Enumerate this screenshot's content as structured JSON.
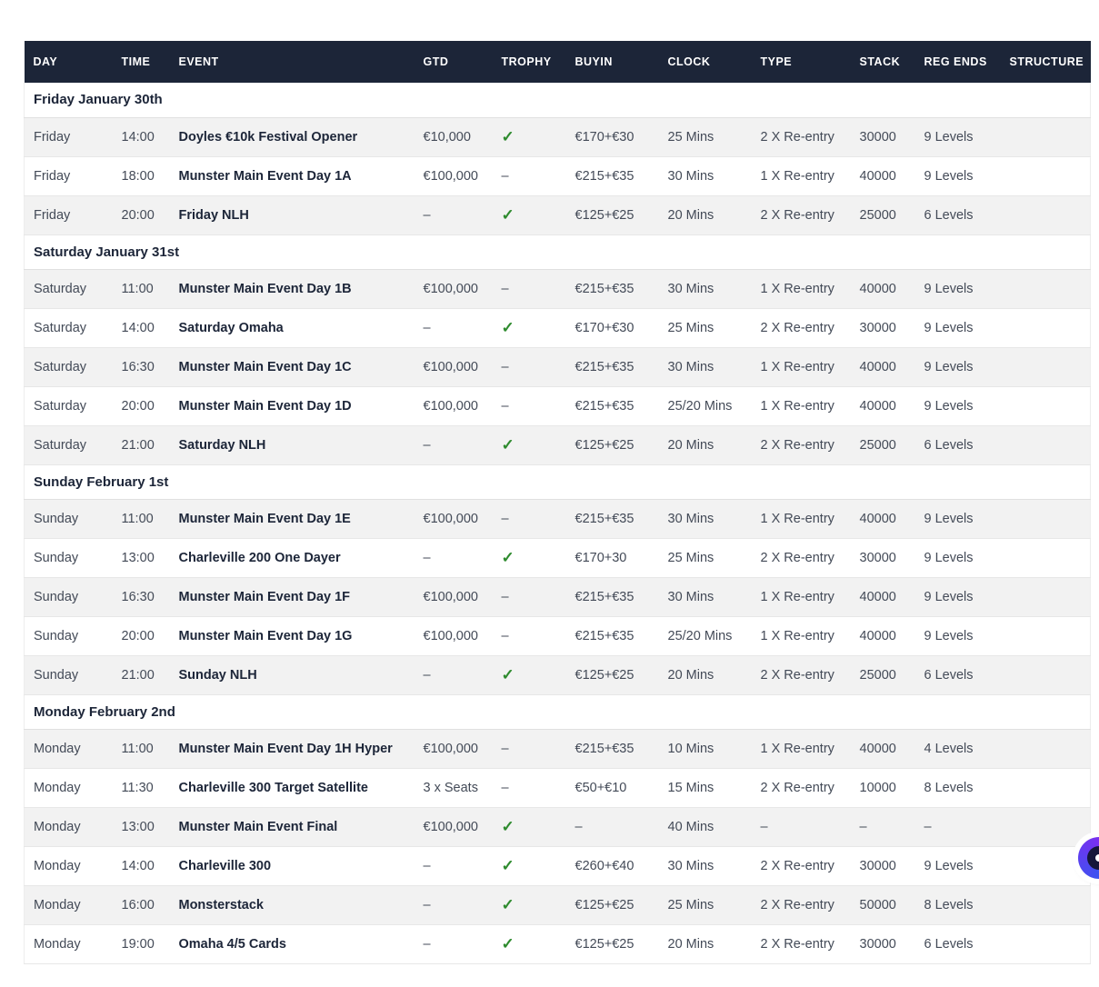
{
  "colors": {
    "header_bg": "#1c2538",
    "row_stripe": "#f2f2f2",
    "check_green": "#2e8b2e",
    "navy_text": "#1c2538",
    "widget_purple": "#7a2ff0",
    "widget_blue": "#2f5af0"
  },
  "table": {
    "columns": [
      {
        "key": "day",
        "label": "DAY"
      },
      {
        "key": "time",
        "label": "TIME"
      },
      {
        "key": "event",
        "label": "EVENT"
      },
      {
        "key": "gtd",
        "label": "GTD"
      },
      {
        "key": "trophy",
        "label": "TROPHY"
      },
      {
        "key": "buyin",
        "label": "BUYIN"
      },
      {
        "key": "clock",
        "label": "CLOCK"
      },
      {
        "key": "type",
        "label": "TYPE"
      },
      {
        "key": "stack",
        "label": "STACK"
      },
      {
        "key": "reg_ends",
        "label": "REG ENDS"
      },
      {
        "key": "structure",
        "label": "STRUCTURE"
      }
    ],
    "trophy_check_glyph": "✓",
    "empty_glyph": "–",
    "sections": [
      {
        "title": "Friday January 30th",
        "rows": [
          {
            "day": "Friday",
            "time": "14:00",
            "event": "Doyles €10k Festival Opener",
            "gtd": "€10,000",
            "trophy": true,
            "buyin": "€170+€30",
            "clock": "25 Mins",
            "type": "2 X Re-entry",
            "stack": "30000",
            "reg_ends": "9 Levels",
            "structure": ""
          },
          {
            "day": "Friday",
            "time": "18:00",
            "event": "Munster Main Event Day 1A",
            "gtd": "€100,000",
            "trophy": false,
            "buyin": "€215+€35",
            "clock": "30 Mins",
            "type": "1 X Re-entry",
            "stack": "40000",
            "reg_ends": "9 Levels",
            "structure": ""
          },
          {
            "day": "Friday",
            "time": "20:00",
            "event": "Friday NLH",
            "gtd": "–",
            "trophy": true,
            "buyin": "€125+€25",
            "clock": "20 Mins",
            "type": "2 X Re-entry",
            "stack": "25000",
            "reg_ends": "6 Levels",
            "structure": ""
          }
        ]
      },
      {
        "title": "Saturday January 31st",
        "rows": [
          {
            "day": "Saturday",
            "time": "11:00",
            "event": "Munster Main Event Day 1B",
            "gtd": "€100,000",
            "trophy": false,
            "buyin": "€215+€35",
            "clock": "30 Mins",
            "type": "1 X Re-entry",
            "stack": "40000",
            "reg_ends": "9 Levels",
            "structure": ""
          },
          {
            "day": "Saturday",
            "time": "14:00",
            "event": "Saturday Omaha",
            "gtd": "–",
            "trophy": true,
            "buyin": "€170+€30",
            "clock": "25 Mins",
            "type": "2 X Re-entry",
            "stack": "30000",
            "reg_ends": "9 Levels",
            "structure": ""
          },
          {
            "day": "Saturday",
            "time": "16:30",
            "event": "Munster Main Event Day 1C",
            "gtd": "€100,000",
            "trophy": false,
            "buyin": "€215+€35",
            "clock": "30 Mins",
            "type": "1 X Re-entry",
            "stack": "40000",
            "reg_ends": "9 Levels",
            "structure": ""
          },
          {
            "day": "Saturday",
            "time": "20:00",
            "event": "Munster Main Event Day 1D",
            "gtd": "€100,000",
            "trophy": false,
            "buyin": "€215+€35",
            "clock": "25/20 Mins",
            "type": "1 X Re-entry",
            "stack": "40000",
            "reg_ends": "9 Levels",
            "structure": ""
          },
          {
            "day": "Saturday",
            "time": "21:00",
            "event": "Saturday NLH",
            "gtd": "–",
            "trophy": true,
            "buyin": "€125+€25",
            "clock": "20 Mins",
            "type": "2 X Re-entry",
            "stack": "25000",
            "reg_ends": "6 Levels",
            "structure": ""
          }
        ]
      },
      {
        "title": "Sunday February 1st",
        "rows": [
          {
            "day": "Sunday",
            "time": "11:00",
            "event": "Munster Main Event Day 1E",
            "gtd": "€100,000",
            "trophy": false,
            "buyin": "€215+€35",
            "clock": "30 Mins",
            "type": "1 X Re-entry",
            "stack": "40000",
            "reg_ends": "9 Levels",
            "structure": ""
          },
          {
            "day": "Sunday",
            "time": "13:00",
            "event": "Charleville 200 One Dayer",
            "gtd": "–",
            "trophy": true,
            "buyin": "€170+30",
            "clock": "25 Mins",
            "type": "2 X Re-entry",
            "stack": "30000",
            "reg_ends": "9 Levels",
            "structure": ""
          },
          {
            "day": "Sunday",
            "time": "16:30",
            "event": "Munster Main Event Day 1F",
            "gtd": "€100,000",
            "trophy": false,
            "buyin": "€215+€35",
            "clock": "30 Mins",
            "type": "1 X Re-entry",
            "stack": "40000",
            "reg_ends": "9 Levels",
            "structure": ""
          },
          {
            "day": "Sunday",
            "time": "20:00",
            "event": "Munster Main Event Day 1G",
            "gtd": "€100,000",
            "trophy": false,
            "buyin": "€215+€35",
            "clock": "25/20 Mins",
            "type": "1 X Re-entry",
            "stack": "40000",
            "reg_ends": "9 Levels",
            "structure": ""
          },
          {
            "day": "Sunday",
            "time": "21:00",
            "event": "Sunday NLH",
            "gtd": "–",
            "trophy": true,
            "buyin": "€125+€25",
            "clock": "20 Mins",
            "type": "2 X Re-entry",
            "stack": "25000",
            "reg_ends": "6 Levels",
            "structure": ""
          }
        ]
      },
      {
        "title": "Monday February 2nd",
        "rows": [
          {
            "day": "Monday",
            "time": "11:00",
            "event": "Munster Main Event Day 1H Hyper",
            "gtd": "€100,000",
            "trophy": false,
            "buyin": "€215+€35",
            "clock": "10 Mins",
            "type": "1 X Re-entry",
            "stack": "40000",
            "reg_ends": "4 Levels",
            "structure": ""
          },
          {
            "day": "Monday",
            "time": "11:30",
            "event": "Charleville 300 Target Satellite",
            "gtd": "3 x Seats",
            "trophy": false,
            "buyin": "€50+€10",
            "clock": "15 Mins",
            "type": "2 X Re-entry",
            "stack": "10000",
            "reg_ends": "8 Levels",
            "structure": ""
          },
          {
            "day": "Monday",
            "time": "13:00",
            "event": "Munster Main Event Final",
            "gtd": "€100,000",
            "trophy": true,
            "buyin": "–",
            "clock": "40 Mins",
            "type": "–",
            "stack": "–",
            "reg_ends": "–",
            "structure": ""
          },
          {
            "day": "Monday",
            "time": "14:00",
            "event": "Charleville 300",
            "gtd": "–",
            "trophy": true,
            "buyin": "€260+€40",
            "clock": "30 Mins",
            "type": "2 X Re-entry",
            "stack": "30000",
            "reg_ends": "9 Levels",
            "structure": ""
          },
          {
            "day": "Monday",
            "time": "16:00",
            "event": "Monsterstack",
            "gtd": "–",
            "trophy": true,
            "buyin": "€125+€25",
            "clock": "25 Mins",
            "type": "2 X Re-entry",
            "stack": "50000",
            "reg_ends": "8 Levels",
            "structure": ""
          },
          {
            "day": "Monday",
            "time": "19:00",
            "event": "Omaha 4/5 Cards",
            "gtd": "–",
            "trophy": true,
            "buyin": "€125+€25",
            "clock": "20 Mins",
            "type": "2 X Re-entry",
            "stack": "30000",
            "reg_ends": "6 Levels",
            "structure": ""
          }
        ]
      }
    ]
  },
  "floating_widget": {
    "name": "accessibility-widget"
  }
}
